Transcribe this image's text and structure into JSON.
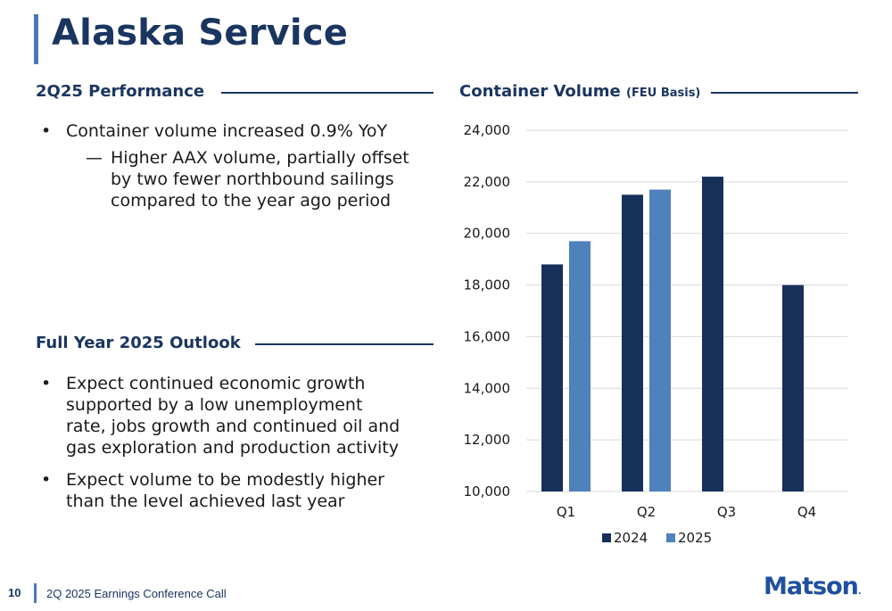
{
  "title": "Alaska Service",
  "performance": {
    "heading": "2Q25 Performance",
    "bullet": "Container volume increased 0.9% YoY",
    "sub_dash": "—",
    "sub_lines": [
      "Higher AAX volume, partially offset",
      "by two fewer northbound sailings",
      "compared to the year ago period"
    ]
  },
  "outlook": {
    "heading": "Full Year 2025 Outlook",
    "bullets": [
      [
        "Expect continued economic growth",
        "supported by a low unemployment",
        "rate, jobs growth and continued oil and",
        "gas exploration and production activity"
      ],
      [
        "Expect volume to be modestly higher",
        "than the level achieved last year"
      ]
    ]
  },
  "chart_heading": {
    "main": "Container Volume",
    "sub": "(FEU Basis)"
  },
  "colors": {
    "navy": "#17305a",
    "light_blue": "#4f81bd",
    "accent": "#4a78b5"
  },
  "chart_data": {
    "type": "bar",
    "title": "Container Volume (FEU Basis)",
    "categories": [
      "Q1",
      "Q2",
      "Q3",
      "Q4"
    ],
    "series": [
      {
        "name": "2024",
        "values": [
          18800,
          21500,
          22200,
          18000
        ]
      },
      {
        "name": "2025",
        "values": [
          19700,
          21700,
          null,
          null
        ]
      }
    ],
    "ylim": [
      10000,
      24000
    ],
    "yticks": [
      10000,
      12000,
      14000,
      16000,
      18000,
      20000,
      22000,
      24000
    ],
    "ytick_labels": [
      "10,000",
      "12,000",
      "14,000",
      "16,000",
      "18,000",
      "20,000",
      "22,000",
      "24,000"
    ],
    "grid": true,
    "legend": "bottom-center"
  },
  "footer": {
    "page": "10",
    "text": "2Q 2025 Earnings Conference Call"
  },
  "logo": {
    "text": "Matson",
    "mark": "."
  }
}
